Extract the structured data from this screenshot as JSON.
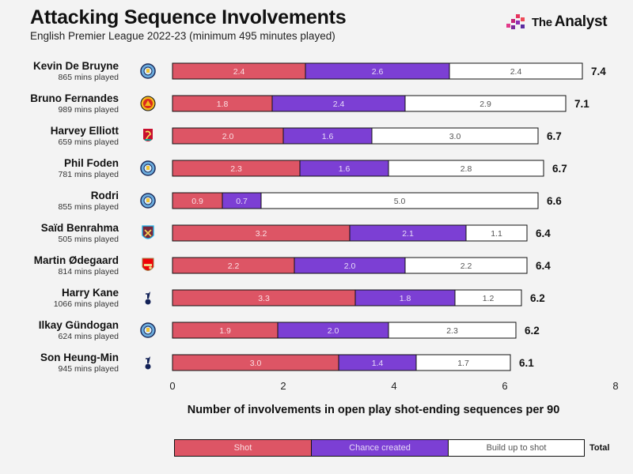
{
  "header": {
    "title": "Attacking Sequence Involvements",
    "subtitle": "English Premier League 2022-23 (minimum 495 minutes played)"
  },
  "brand": {
    "the": "The",
    "name": "Analyst"
  },
  "colors": {
    "shot": "#dd5565",
    "chance": "#7c3fd4",
    "build": "#ffffff",
    "text": "#111111"
  },
  "chart_data": {
    "type": "bar",
    "orientation": "horizontal",
    "stacked": true,
    "xlabel": "Number of involvements in open play shot-ending sequences per 90",
    "xlim": [
      0,
      8
    ],
    "xticks": [
      0,
      2,
      4,
      6,
      8
    ],
    "series_names": [
      "Shot",
      "Chance created",
      "Build up to shot"
    ],
    "players": [
      {
        "name": "Kevin De Bruyne",
        "minutes": "865 mins played",
        "club": "Manchester City",
        "shot": 2.4,
        "chance": 2.6,
        "build": 2.4,
        "total": 7.4
      },
      {
        "name": "Bruno Fernandes",
        "minutes": "989 mins played",
        "club": "Manchester United",
        "shot": 1.8,
        "chance": 2.4,
        "build": 2.9,
        "total": 7.1
      },
      {
        "name": "Harvey Elliott",
        "minutes": "659 mins played",
        "club": "Liverpool",
        "shot": 2.0,
        "chance": 1.6,
        "build": 3.0,
        "total": 6.7
      },
      {
        "name": "Phil Foden",
        "minutes": "781 mins played",
        "club": "Manchester City",
        "shot": 2.3,
        "chance": 1.6,
        "build": 2.8,
        "total": 6.7
      },
      {
        "name": "Rodri",
        "minutes": "855 mins played",
        "club": "Manchester City",
        "shot": 0.9,
        "chance": 0.7,
        "build": 5.0,
        "total": 6.6
      },
      {
        "name": "Saïd Benrahma",
        "minutes": "505 mins played",
        "club": "West Ham United",
        "shot": 3.2,
        "chance": 2.1,
        "build": 1.1,
        "total": 6.4
      },
      {
        "name": "Martin Ødegaard",
        "minutes": "814 mins played",
        "club": "Arsenal",
        "shot": 2.2,
        "chance": 2.0,
        "build": 2.2,
        "total": 6.4
      },
      {
        "name": "Harry Kane",
        "minutes": "1066 mins played",
        "club": "Tottenham Hotspur",
        "shot": 3.3,
        "chance": 1.8,
        "build": 1.2,
        "total": 6.2
      },
      {
        "name": "Ilkay Gündogan",
        "minutes": "624 mins played",
        "club": "Manchester City",
        "shot": 1.9,
        "chance": 2.0,
        "build": 2.3,
        "total": 6.2
      },
      {
        "name": "Son Heung-Min",
        "minutes": "945 mins played",
        "club": "Tottenham Hotspur",
        "shot": 3.0,
        "chance": 1.4,
        "build": 1.7,
        "total": 6.1
      }
    ]
  },
  "legend": {
    "shot": "Shot",
    "chance": "Chance created",
    "build": "Build up to shot",
    "total": "Total"
  }
}
